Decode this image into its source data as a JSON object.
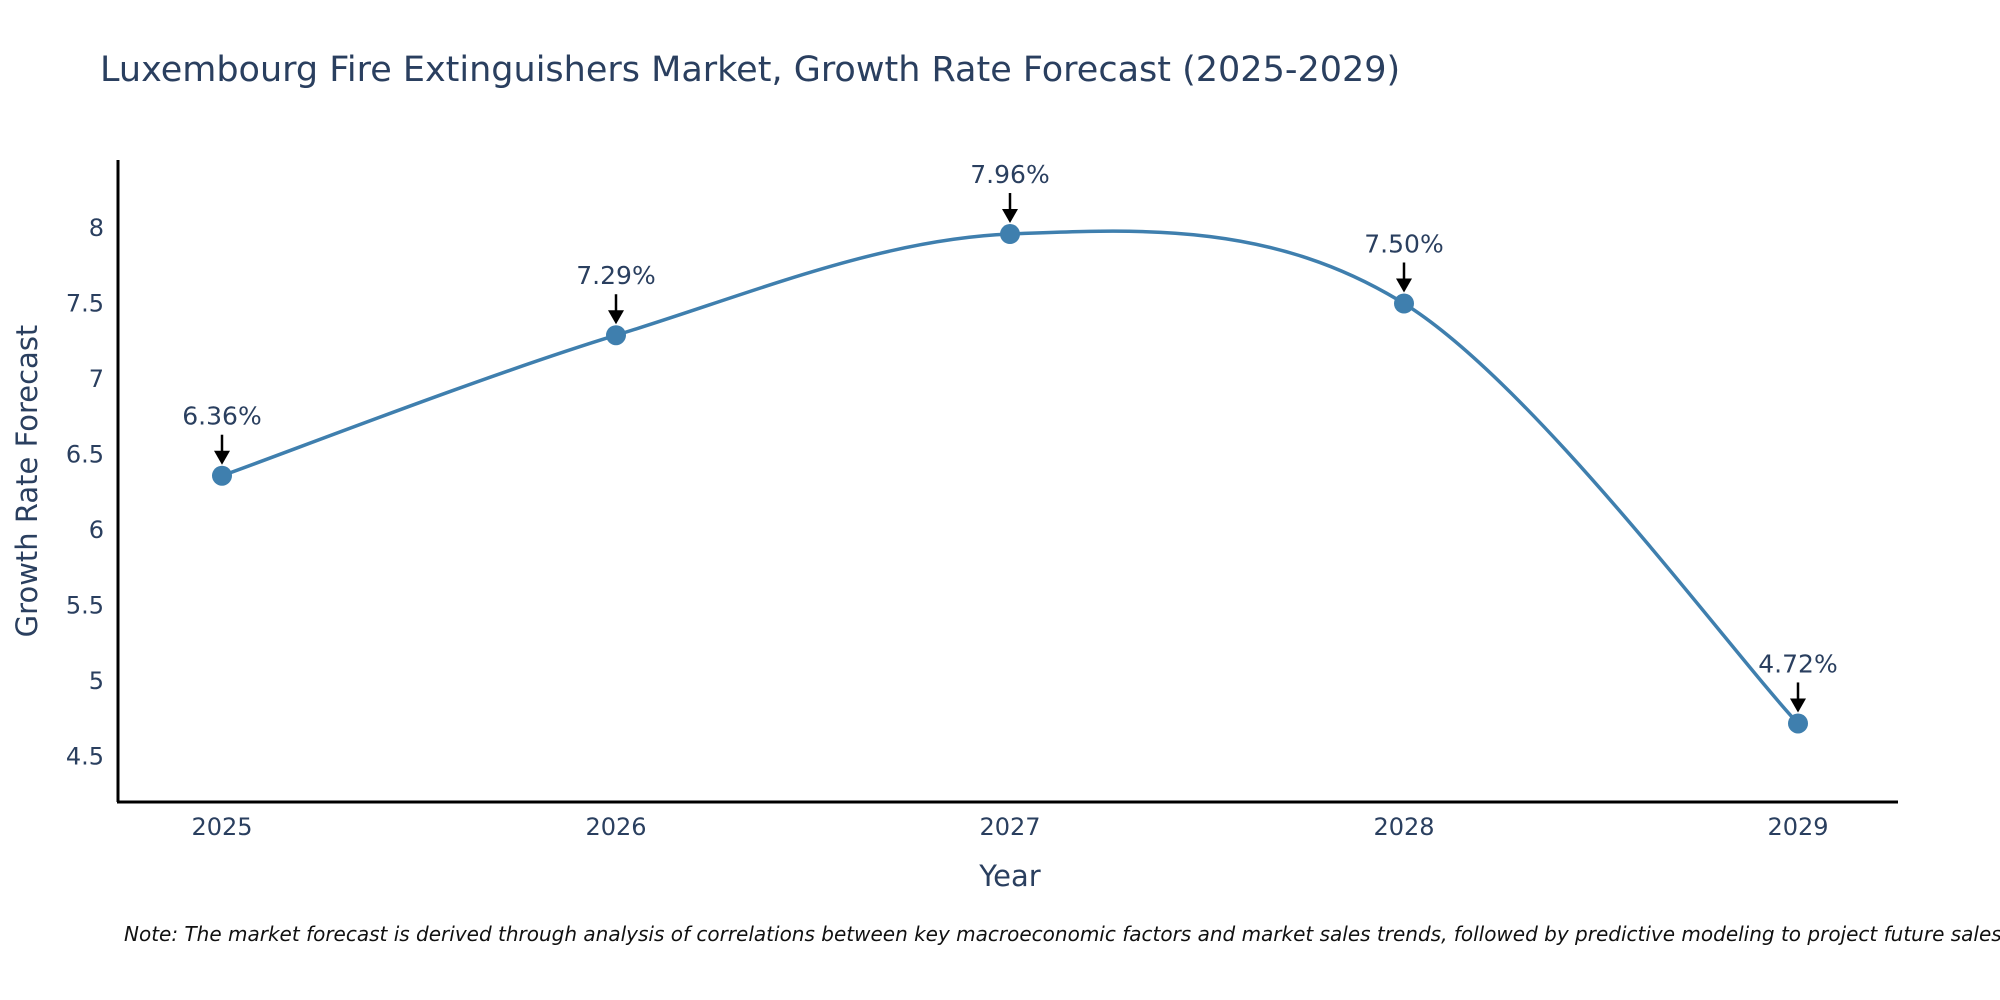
{
  "chart_data": {
    "type": "line",
    "title": "Luxembourg Fire Extinguishers Market, Growth Rate Forecast (2025-2029)",
    "xlabel": "Year",
    "ylabel": "Growth Rate Forecast",
    "x": [
      "2025",
      "2026",
      "2027",
      "2028",
      "2029"
    ],
    "series": [
      {
        "name": "Growth Rate Forecast",
        "values": [
          6.36,
          7.29,
          7.96,
          7.5,
          4.72
        ]
      }
    ],
    "data_labels": [
      "6.36%",
      "7.29%",
      "7.96%",
      "7.50%",
      "4.72%"
    ],
    "y_ticks": [
      4.5,
      5,
      5.5,
      6,
      6.5,
      7,
      7.5,
      8
    ],
    "y_tick_labels": [
      "4.5",
      "5",
      "5.5",
      "6",
      "6.5",
      "7",
      "7.5",
      "8"
    ],
    "ylim": [
      4.2,
      8.45
    ],
    "grid": false,
    "line_color": "#3f7fae",
    "marker_color": "#3f7fae",
    "note": "Note: The market forecast is derived through analysis of correlations between key macroeconomic factors and market sales trends, followed by predictive modeling to project future sales."
  }
}
